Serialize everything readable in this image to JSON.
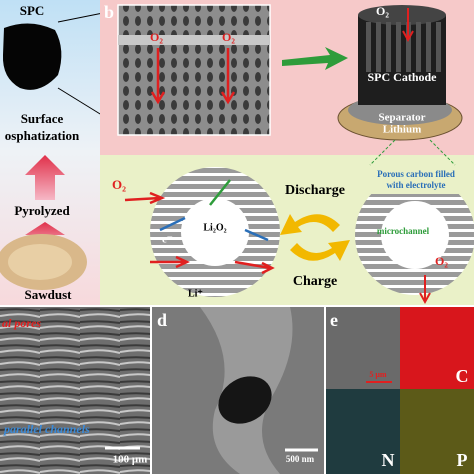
{
  "panel_a": {
    "product": "SPC",
    "step_1_line_1": "Surface",
    "step_1_line_2": "osphatization",
    "step_2": "Pyrolyzed",
    "source": "Sawdust"
  },
  "panel_b": {
    "label": "b",
    "sem_o2_left": "O₂",
    "sem_o2_right": "O₂",
    "cathode_o2": "O₂",
    "cathode": "SPC Cathode",
    "separator": "Separator",
    "lithium": "Lithium",
    "porous_note": [
      "Porous carbon filled",
      "with electrolyte"
    ],
    "discharge": "Discharge",
    "charge": "Charge",
    "microchannel": "microchannel",
    "product": "Li₂O₂",
    "electron": "e⁻",
    "ion": "Li⁺",
    "left_o2": "O₂",
    "right_o2": "O₂"
  },
  "panel_c": {
    "pores": "al pores",
    "channels": "parallel channels",
    "scale": "100 μm"
  },
  "panel_d": {
    "label": "d",
    "scale": "500 nm"
  },
  "panel_e": {
    "label": "e",
    "scale": "5 μm",
    "map_c": "C",
    "map_n": "N",
    "map_p": "P"
  }
}
